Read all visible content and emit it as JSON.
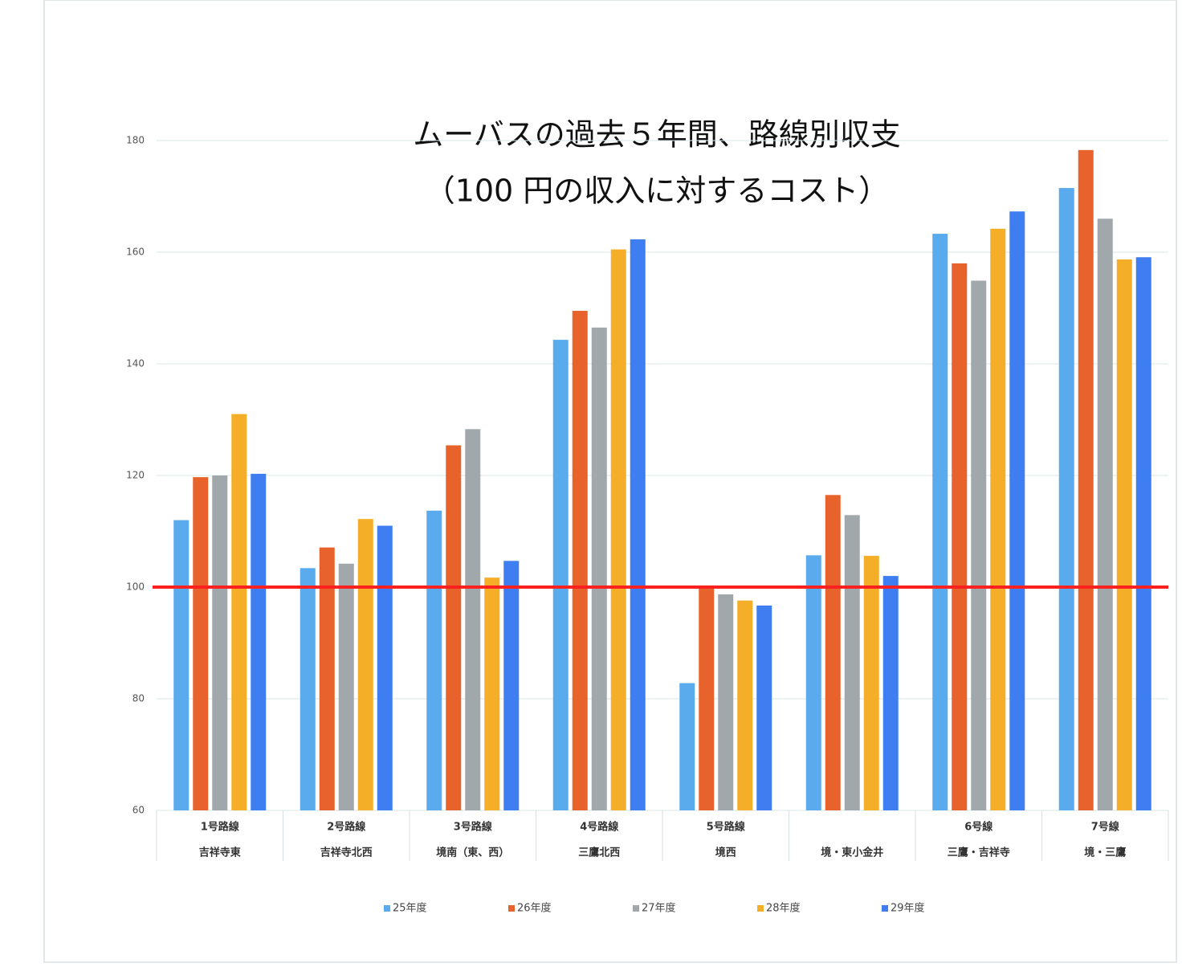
{
  "chart_data": {
    "type": "bar",
    "title": "ムーバスの過去５年間、路線別収支",
    "subtitle": "（100 円の収入に対するコスト）",
    "categories": [
      "1号路線",
      "2号路線",
      "3号路線",
      "4号路線",
      "5号路線",
      null,
      "6号線",
      "7号線"
    ],
    "category_sublabels": [
      "吉祥寺東",
      "吉祥寺北西",
      "境南（東、西）",
      "三鷹北西",
      "境西",
      "境・東小金井",
      "三鷹・吉祥寺",
      "境・三鷹"
    ],
    "series": [
      {
        "name": "25年度",
        "color": "#5aaaee",
        "values": [
          112,
          103.4,
          113.7,
          144.3,
          82.8,
          105.7,
          163.3,
          171.5
        ]
      },
      {
        "name": "26年度",
        "color": "#e8622c",
        "values": [
          119.7,
          107.1,
          125.4,
          149.5,
          100,
          116.5,
          158,
          178.3
        ]
      },
      {
        "name": "27年度",
        "color": "#a0a8ab",
        "values": [
          120,
          104.2,
          128.3,
          146.5,
          98.7,
          112.9,
          154.9,
          166
        ]
      },
      {
        "name": "28年度",
        "color": "#f5ae27",
        "values": [
          131,
          112.2,
          101.7,
          160.5,
          97.6,
          105.6,
          164.2,
          158.7
        ]
      },
      {
        "name": "29年度",
        "color": "#3f7ef0",
        "values": [
          120.3,
          111,
          104.7,
          162.3,
          96.7,
          102,
          167.3,
          159.1
        ]
      }
    ],
    "ylim": [
      60,
      180
    ],
    "yticks": [
      60,
      80,
      100,
      120,
      140,
      160,
      180
    ],
    "grid": true,
    "reference_line": {
      "value": 100,
      "color": "#ff2020"
    },
    "legend": "bottom"
  }
}
